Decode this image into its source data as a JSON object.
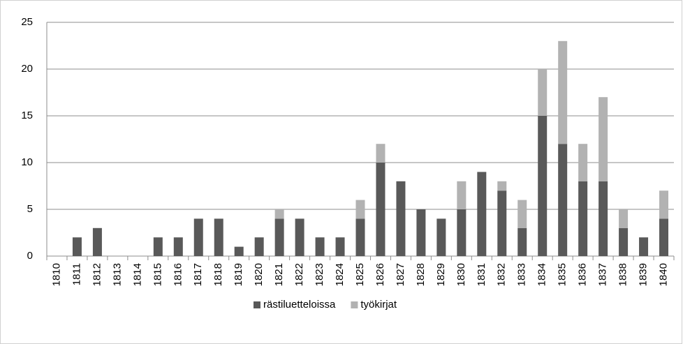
{
  "chart_data": {
    "type": "bar",
    "stacked": true,
    "categories": [
      "1810",
      "1811",
      "1812",
      "1813",
      "1814",
      "1815",
      "1816",
      "1817",
      "1818",
      "1819",
      "1820",
      "1821",
      "1822",
      "1823",
      "1824",
      "1825",
      "1826",
      "1827",
      "1828",
      "1829",
      "1830",
      "1831",
      "1832",
      "1833",
      "1834",
      "1835",
      "1836",
      "1837",
      "1838",
      "1839",
      "1840"
    ],
    "series": [
      {
        "name": "rästiluetteloissa",
        "color": "#595959",
        "values": [
          0,
          2,
          3,
          0,
          0,
          2,
          2,
          4,
          4,
          1,
          2,
          4,
          4,
          2,
          2,
          4,
          10,
          8,
          5,
          4,
          5,
          9,
          7,
          3,
          15,
          12,
          8,
          8,
          3,
          2,
          4
        ]
      },
      {
        "name": "työkirjat",
        "color": "#b2b2b2",
        "values": [
          0,
          0,
          0,
          0,
          0,
          0,
          0,
          0,
          0,
          0,
          0,
          1,
          0,
          0,
          0,
          2,
          2,
          0,
          0,
          0,
          3,
          0,
          1,
          3,
          5,
          11,
          4,
          9,
          2,
          0,
          3
        ]
      }
    ],
    "ylim": [
      0,
      25
    ],
    "yticks": [
      0,
      5,
      10,
      15,
      20,
      25
    ],
    "grid": true,
    "legend": "bottom"
  }
}
